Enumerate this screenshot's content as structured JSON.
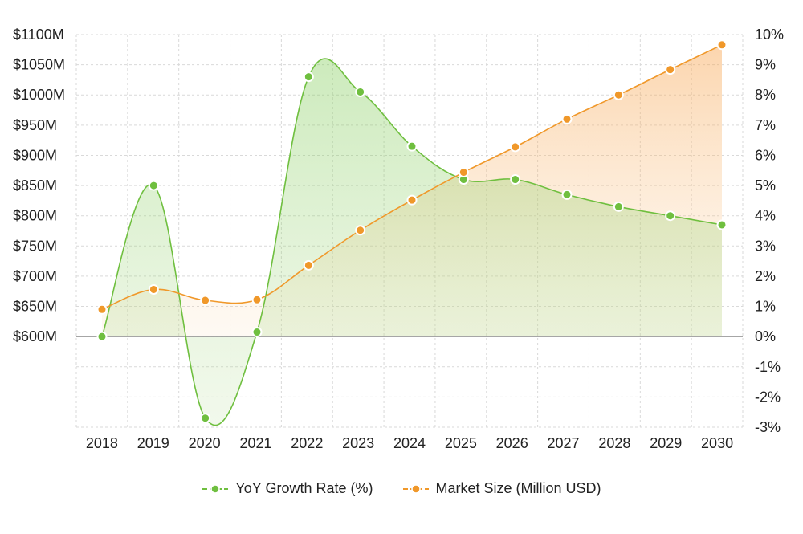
{
  "chart_data": {
    "type": "area",
    "categories": [
      "2018",
      "2019",
      "2020",
      "2021",
      "2022",
      "2023",
      "2024",
      "2025",
      "2026",
      "2027",
      "2028",
      "2029",
      "2030"
    ],
    "series": [
      {
        "name": "YoY Growth Rate (%)",
        "axis": "right",
        "color": "#6fbf3f",
        "values": [
          0,
          5.0,
          -2.7,
          0.15,
          8.6,
          8.1,
          6.3,
          5.2,
          5.2,
          4.7,
          4.3,
          4.0,
          3.7
        ]
      },
      {
        "name": "Market Size (Million USD)",
        "axis": "left",
        "color": "#f0982a",
        "values": [
          645,
          678,
          660,
          661,
          718,
          776,
          826,
          872,
          914,
          960,
          1000,
          1042,
          1083
        ]
      }
    ],
    "y_left": {
      "ticks": [
        600,
        650,
        700,
        750,
        800,
        850,
        900,
        950,
        1000,
        1050,
        1100
      ],
      "tick_labels": [
        "$600M",
        "$650M",
        "$700M",
        "$750M",
        "$800M",
        "$850M",
        "$900M",
        "$950M",
        "$1000M",
        "$1050M",
        "$1100M"
      ]
    },
    "y_right": {
      "range": [
        -3,
        10
      ],
      "ticks": [
        -3,
        -2,
        -1,
        0,
        1,
        2,
        3,
        4,
        5,
        6,
        7,
        8,
        9,
        10
      ],
      "tick_labels": [
        "-3%",
        "-2%",
        "-1%",
        "0%",
        "1%",
        "2%",
        "3%",
        "4%",
        "5%",
        "6%",
        "7%",
        "8%",
        "9%",
        "10%"
      ]
    },
    "grid": true,
    "legend_position": "bottom"
  }
}
